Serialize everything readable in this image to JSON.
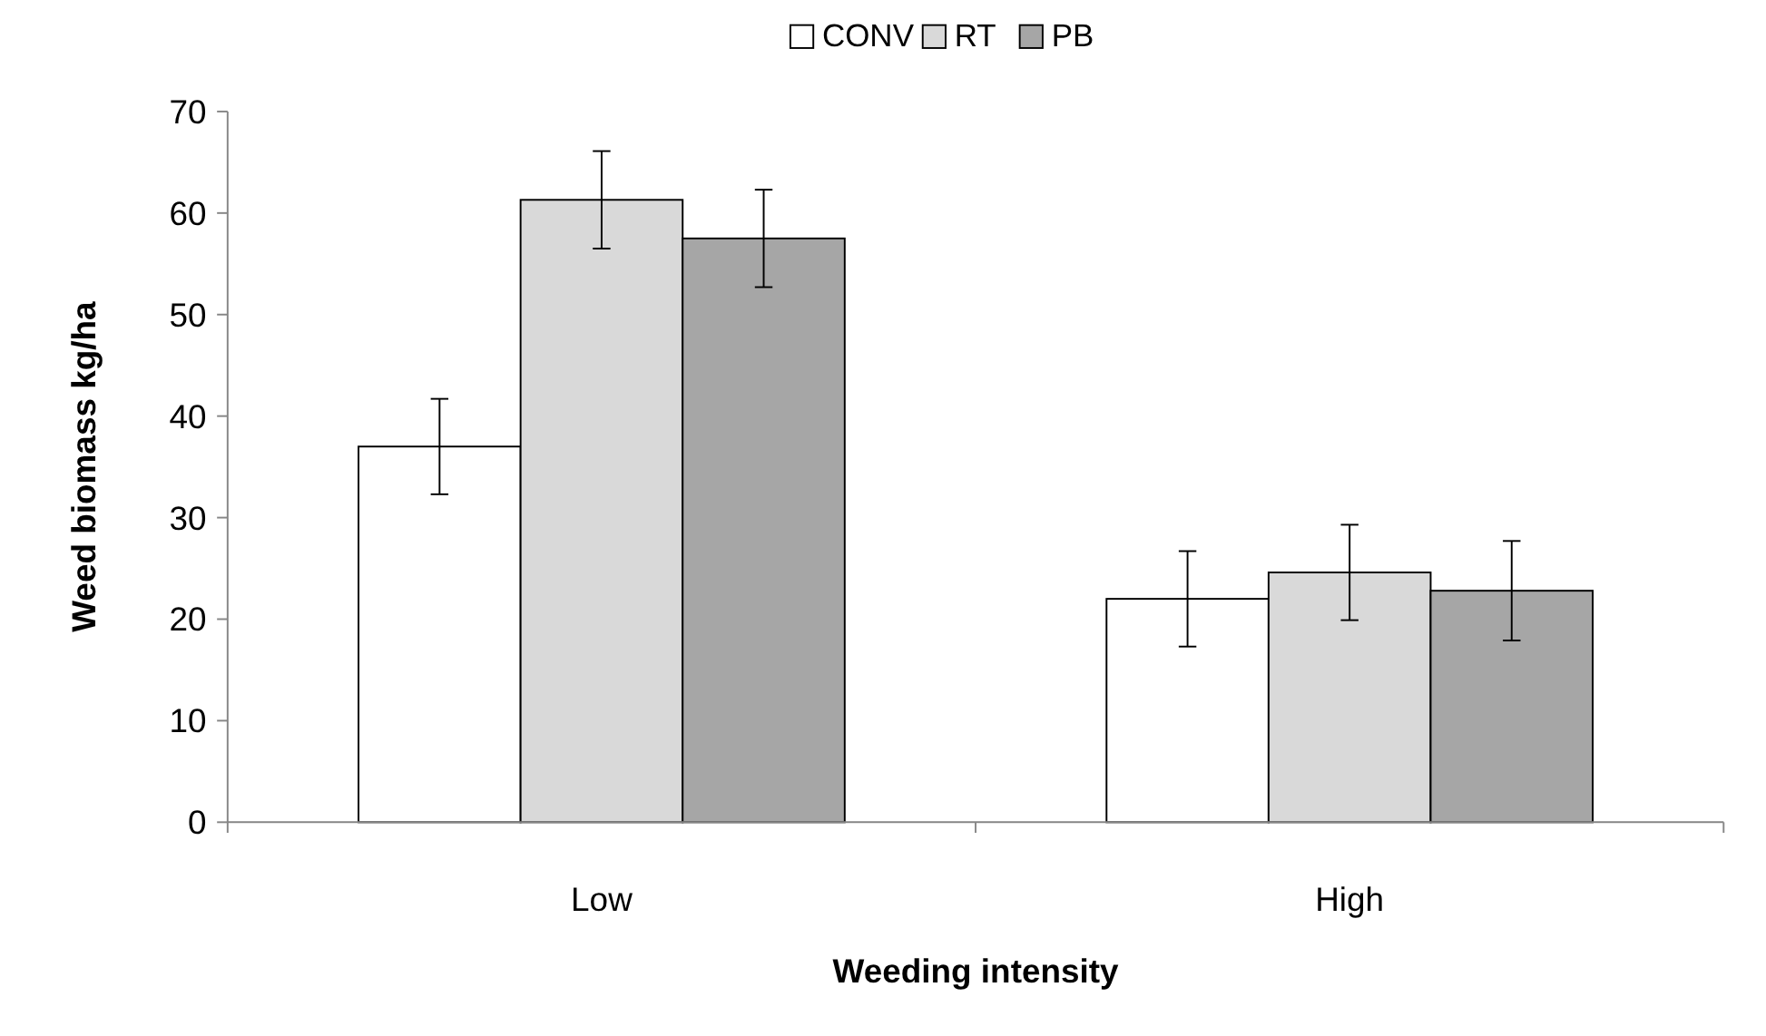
{
  "chart_data": {
    "type": "bar",
    "xlabel": "Weeding intensity",
    "ylabel": "Weed biomass kg/ha",
    "categories": [
      "Low",
      "High"
    ],
    "series": [
      {
        "name": "CONV",
        "color": "#ffffff",
        "values": [
          37,
          22
        ],
        "errors": [
          4.7,
          4.7
        ]
      },
      {
        "name": "RT",
        "color": "#d9d9d9",
        "values": [
          61.3,
          24.6
        ],
        "errors": [
          4.8,
          4.7
        ]
      },
      {
        "name": "PB",
        "color": "#a6a6a6",
        "values": [
          57.5,
          22.8
        ],
        "errors": [
          4.8,
          4.9
        ]
      }
    ],
    "ylim": [
      0,
      70
    ],
    "yticks": [
      0,
      10,
      20,
      30,
      40,
      50,
      60,
      70
    ],
    "grid": false,
    "legend": "top"
  }
}
